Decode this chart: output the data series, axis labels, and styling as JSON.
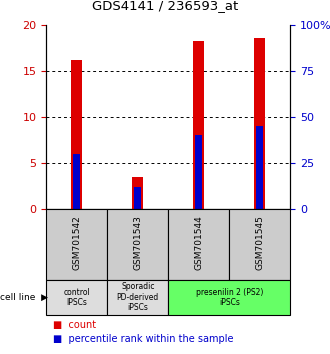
{
  "title": "GDS4141 / 236593_at",
  "samples": [
    "GSM701542",
    "GSM701543",
    "GSM701544",
    "GSM701545"
  ],
  "count_values": [
    16.2,
    3.5,
    18.2,
    18.6
  ],
  "percentile_values": [
    30,
    12,
    40,
    45
  ],
  "bar_color": "#dd0000",
  "percentile_color": "#0000cc",
  "ylim_left": [
    0,
    20
  ],
  "ylim_right": [
    0,
    100
  ],
  "yticks_left": [
    0,
    5,
    10,
    15,
    20
  ],
  "yticks_right": [
    0,
    25,
    50,
    75,
    100
  ],
  "ytick_labels_right": [
    "0",
    "25",
    "50",
    "75",
    "100%"
  ],
  "groups": [
    {
      "label": "control\nIPSCs",
      "start": 0,
      "end": 1,
      "color": "#dddddd"
    },
    {
      "label": "Sporadic\nPD-derived\niPSCs",
      "start": 1,
      "end": 2,
      "color": "#dddddd"
    },
    {
      "label": "presenilin 2 (PS2)\niPSCs",
      "start": 2,
      "end": 4,
      "color": "#66ff66"
    }
  ],
  "legend_count_label": "count",
  "legend_percentile_label": "percentile rank within the sample",
  "cell_line_label": "cell line",
  "bar_width": 0.18,
  "background_color": "#ffffff",
  "sample_box_color": "#cccccc"
}
